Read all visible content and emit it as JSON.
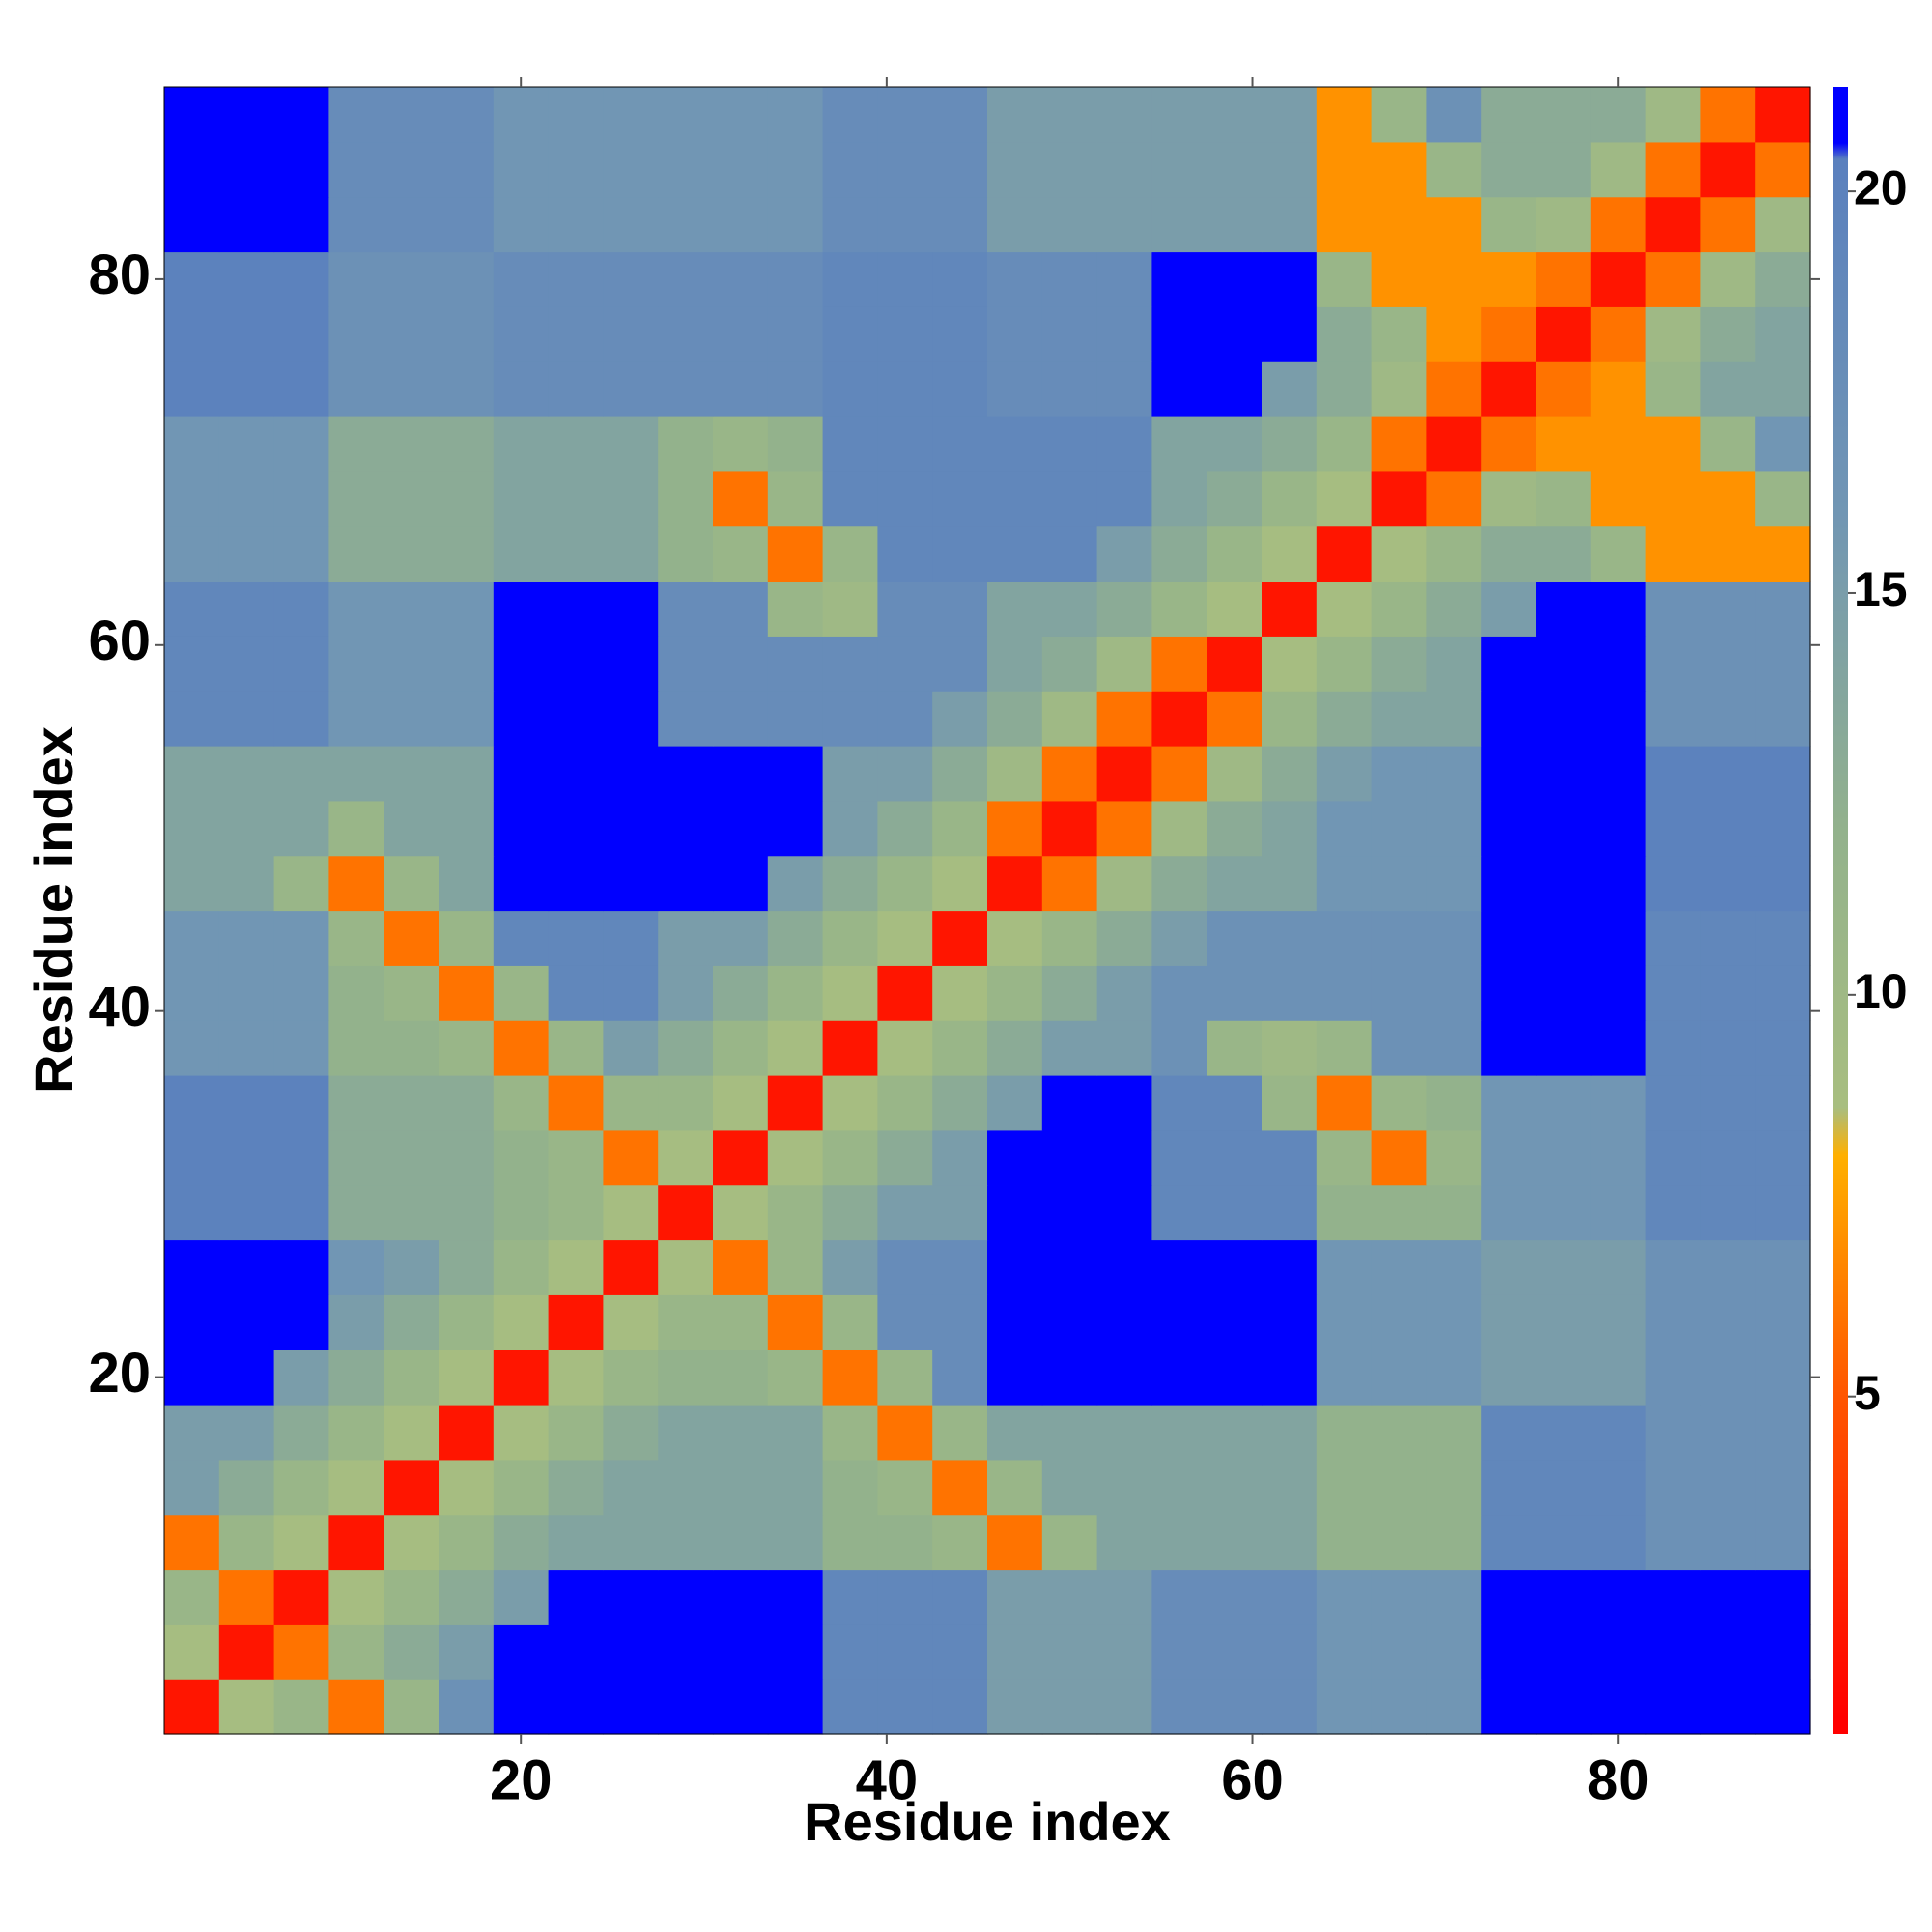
{
  "chart_data": {
    "type": "heatmap",
    "xlabel": "Residue index",
    "ylabel": "Residue index",
    "x": [
      2,
      5,
      8,
      11,
      14,
      17,
      20,
      23,
      26,
      29,
      32,
      35,
      38,
      41,
      44,
      47,
      50,
      53,
      56,
      59,
      62,
      65,
      68,
      71,
      74,
      77,
      80,
      83,
      86,
      89
    ],
    "y": [
      2,
      5,
      8,
      11,
      14,
      17,
      20,
      23,
      26,
      29,
      32,
      35,
      38,
      41,
      44,
      47,
      50,
      53,
      56,
      59,
      62,
      65,
      68,
      71,
      74,
      77,
      80,
      83,
      86,
      89
    ],
    "xlim": [
      0.5,
      90.5
    ],
    "ylim": [
      0.5,
      90.5
    ],
    "xticks": [
      20,
      40,
      60,
      80
    ],
    "yticks": [
      20,
      40,
      60,
      80
    ],
    "colorbar": {
      "lim": [
        0.8,
        21.3
      ],
      "ticks": [
        5,
        10,
        15,
        20
      ]
    },
    "colorscale": [
      [
        1,
        "#ff0000"
      ],
      [
        5,
        "#ff5500"
      ],
      [
        8,
        "#ffb000"
      ],
      [
        8.6,
        "#a8be80"
      ],
      [
        12,
        "#93b28c"
      ],
      [
        16,
        "#7196b4"
      ],
      [
        20.4,
        "#5a80be"
      ],
      [
        20.6,
        "#0000ff"
      ]
    ],
    "z": [
      [
        2,
        9,
        11,
        6,
        11,
        17,
        22,
        22,
        22,
        22,
        22,
        22,
        19,
        19,
        19,
        15,
        15,
        15,
        18,
        18,
        18,
        16,
        16,
        16,
        22,
        22,
        22,
        22,
        22,
        22
      ],
      [
        9,
        2,
        6,
        11,
        13,
        15,
        22,
        22,
        22,
        22,
        22,
        22,
        19,
        19,
        19,
        15,
        15,
        15,
        18,
        18,
        18,
        16,
        16,
        16,
        22,
        22,
        22,
        22,
        22,
        22
      ],
      [
        11,
        6,
        2,
        9,
        11,
        13,
        15,
        22,
        22,
        22,
        22,
        22,
        19,
        19,
        19,
        15,
        15,
        15,
        18,
        18,
        18,
        16,
        16,
        16,
        22,
        22,
        22,
        22,
        22,
        22
      ],
      [
        6,
        11,
        9,
        2,
        9,
        11,
        13,
        14,
        14,
        14,
        14,
        14,
        12,
        12,
        11,
        6,
        11,
        14,
        14,
        14,
        14,
        12,
        12,
        12,
        19,
        19,
        19,
        17,
        17,
        17
      ],
      [
        15,
        13,
        11,
        9,
        2,
        9,
        11,
        13,
        14,
        14,
        14,
        14,
        12,
        11,
        6,
        11,
        14,
        14,
        14,
        14,
        14,
        12,
        12,
        12,
        19,
        19,
        19,
        17,
        17,
        17
      ],
      [
        15,
        15,
        13,
        11,
        9,
        2,
        9,
        11,
        13,
        14,
        14,
        14,
        11,
        6,
        11,
        14,
        14,
        14,
        14,
        14,
        14,
        12,
        12,
        12,
        19,
        19,
        19,
        17,
        17,
        17
      ],
      [
        22,
        22,
        15,
        13,
        11,
        9,
        2,
        9,
        11,
        12,
        12,
        11,
        6,
        11,
        18,
        22,
        22,
        22,
        22,
        22,
        22,
        16,
        16,
        16,
        15,
        15,
        15,
        17,
        17,
        17
      ],
      [
        22,
        22,
        22,
        15,
        13,
        11,
        9,
        2,
        9,
        11,
        11,
        6,
        11,
        18,
        18,
        22,
        22,
        22,
        22,
        22,
        22,
        16,
        16,
        16,
        15,
        15,
        15,
        17,
        17,
        17
      ],
      [
        22,
        22,
        22,
        16,
        15,
        13,
        11,
        9,
        2,
        9,
        6,
        11,
        15,
        18,
        18,
        22,
        22,
        22,
        22,
        22,
        22,
        16,
        16,
        16,
        15,
        15,
        15,
        17,
        17,
        17
      ],
      [
        20,
        20,
        20,
        13,
        13,
        13,
        12,
        11,
        9,
        2,
        9,
        11,
        13,
        15,
        15,
        21,
        21,
        21,
        19,
        19,
        19,
        12,
        12,
        12,
        16,
        16,
        16,
        19,
        19,
        19
      ],
      [
        20,
        20,
        20,
        13,
        13,
        13,
        12,
        11,
        6,
        9,
        2,
        9,
        11,
        13,
        15,
        21,
        21,
        21,
        19,
        19,
        19,
        11,
        6,
        11,
        16,
        16,
        16,
        19,
        19,
        19
      ],
      [
        20,
        20,
        20,
        13,
        13,
        13,
        11,
        6,
        11,
        11,
        9,
        2,
        9,
        11,
        13,
        15,
        21,
        21,
        19,
        19,
        11,
        6,
        11,
        12,
        16,
        16,
        16,
        19,
        19,
        19
      ],
      [
        16,
        16,
        16,
        12,
        12,
        11,
        6,
        11,
        15,
        13,
        11,
        9,
        2,
        9,
        11,
        13,
        15,
        15,
        17,
        11,
        10,
        11,
        17,
        17,
        21,
        21,
        21,
        19,
        19,
        19
      ],
      [
        16,
        16,
        16,
        12,
        11,
        6,
        11,
        19,
        19,
        15,
        13,
        11,
        9,
        2,
        9,
        11,
        13,
        15,
        17,
        17,
        17,
        17,
        17,
        17,
        21,
        21,
        21,
        19,
        19,
        19
      ],
      [
        16,
        16,
        16,
        11,
        6,
        11,
        19,
        19,
        19,
        15,
        15,
        13,
        11,
        9,
        2,
        9,
        11,
        13,
        15,
        17,
        17,
        17,
        17,
        17,
        21,
        21,
        21,
        19,
        19,
        19
      ],
      [
        14,
        14,
        11,
        6,
        11,
        14,
        22,
        22,
        22,
        21,
        21,
        15,
        13,
        11,
        9,
        2,
        6,
        10,
        13,
        14,
        14,
        16,
        16,
        16,
        21,
        21,
        21,
        20,
        20,
        20
      ],
      [
        14,
        14,
        14,
        11,
        14,
        14,
        22,
        22,
        22,
        21,
        21,
        21,
        15,
        13,
        11,
        6,
        2,
        6,
        10,
        13,
        14,
        16,
        16,
        16,
        21,
        21,
        21,
        20,
        20,
        20
      ],
      [
        14,
        14,
        14,
        14,
        14,
        14,
        22,
        22,
        22,
        21,
        21,
        21,
        15,
        15,
        13,
        10,
        6,
        2,
        6,
        10,
        13,
        15,
        16,
        16,
        21,
        21,
        21,
        20,
        20,
        20
      ],
      [
        19,
        19,
        19,
        16,
        16,
        16,
        22,
        22,
        22,
        18,
        18,
        18,
        18,
        18,
        15,
        13,
        10,
        6,
        2,
        6,
        11,
        13,
        14,
        14,
        21,
        21,
        21,
        17,
        17,
        17
      ],
      [
        19,
        19,
        19,
        16,
        16,
        16,
        22,
        22,
        22,
        18,
        18,
        18,
        18,
        18,
        18,
        14,
        13,
        10,
        6,
        2,
        9,
        11,
        13,
        14,
        21,
        21,
        21,
        17,
        17,
        17
      ],
      [
        19,
        19,
        19,
        16,
        16,
        16,
        22,
        22,
        22,
        18,
        18,
        11,
        10,
        18,
        18,
        14,
        14,
        13,
        11,
        9,
        2,
        9,
        11,
        13,
        15,
        21,
        21,
        17,
        17,
        17
      ],
      [
        16,
        16,
        16,
        13,
        13,
        13,
        14,
        14,
        14,
        12,
        11,
        6,
        11,
        19,
        19,
        19,
        19,
        15,
        13,
        11,
        9,
        2,
        9,
        11,
        13,
        13,
        11,
        7,
        7,
        7
      ],
      [
        16,
        16,
        16,
        13,
        13,
        13,
        14,
        14,
        14,
        12,
        6,
        11,
        19,
        19,
        19,
        19,
        19,
        19,
        14,
        13,
        11,
        9,
        2,
        6,
        10,
        11,
        7,
        7,
        7,
        11
      ],
      [
        16,
        16,
        16,
        13,
        13,
        13,
        14,
        14,
        14,
        12,
        11,
        12,
        19,
        19,
        19,
        19,
        19,
        19,
        14,
        14,
        13,
        11,
        6,
        2,
        6,
        7,
        7,
        7,
        11,
        16
      ],
      [
        20,
        20,
        20,
        17,
        17,
        17,
        18,
        18,
        18,
        18,
        18,
        18,
        19,
        19,
        19,
        18,
        18,
        18,
        21,
        21,
        15,
        13,
        10,
        6,
        2,
        6,
        7,
        11,
        14,
        14
      ],
      [
        20,
        20,
        20,
        17,
        17,
        17,
        18,
        18,
        18,
        18,
        18,
        18,
        19,
        19,
        19,
        18,
        18,
        18,
        21,
        21,
        21,
        13,
        11,
        7,
        6,
        2,
        6,
        10,
        13,
        14
      ],
      [
        20,
        20,
        20,
        17,
        17,
        17,
        18,
        18,
        18,
        18,
        18,
        18,
        19,
        19,
        19,
        18,
        18,
        18,
        21,
        21,
        21,
        11,
        7,
        7,
        7,
        6,
        2,
        6,
        10,
        13
      ],
      [
        22,
        22,
        22,
        18,
        18,
        18,
        16,
        16,
        16,
        16,
        16,
        16,
        18,
        18,
        18,
        15,
        15,
        15,
        15,
        15,
        15,
        7,
        7,
        7,
        11,
        10,
        6,
        2,
        6,
        10
      ],
      [
        22,
        22,
        22,
        18,
        18,
        18,
        16,
        16,
        16,
        16,
        16,
        16,
        18,
        18,
        18,
        15,
        15,
        15,
        15,
        15,
        15,
        7,
        7,
        11,
        13,
        13,
        10,
        6,
        2,
        6
      ],
      [
        22,
        22,
        22,
        18,
        18,
        18,
        16,
        16,
        16,
        16,
        16,
        16,
        18,
        18,
        18,
        15,
        15,
        15,
        15,
        15,
        15,
        7,
        11,
        17,
        13,
        13,
        13,
        10,
        6,
        2
      ]
    ]
  }
}
